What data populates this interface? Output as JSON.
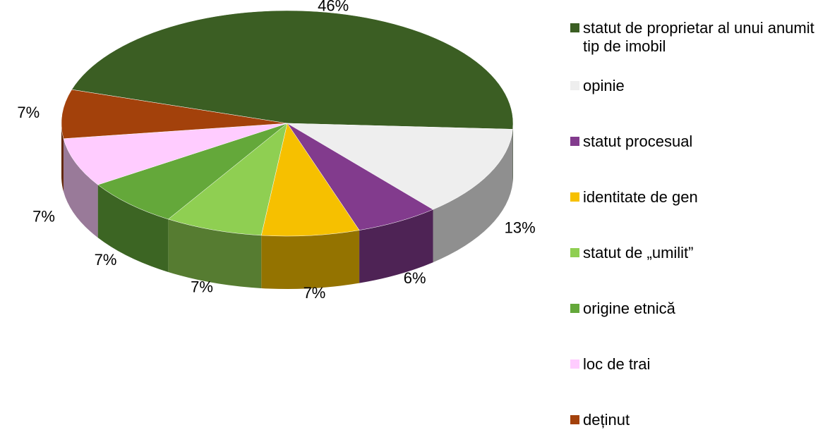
{
  "chart_data": {
    "type": "pie3d",
    "categories": [
      "statut de proprietar al unui anumit tip de imobil",
      "opinie",
      "statut procesual",
      "identitate de gen",
      "statut de „umilit”",
      "origine etnică",
      "loc de trai",
      "deținut"
    ],
    "values": [
      46,
      13,
      6,
      7,
      7,
      7,
      7,
      7
    ],
    "value_labels": [
      "46%",
      "13%",
      "6%",
      "7%",
      "7%",
      "7%",
      "7%",
      "7%"
    ],
    "colors": [
      "#3b5e23",
      "#eeeeee",
      "#823b8d",
      "#f6c000",
      "#8fcf52",
      "#64a83a",
      "#ffccff",
      "#a3410b"
    ],
    "legend": "right"
  }
}
